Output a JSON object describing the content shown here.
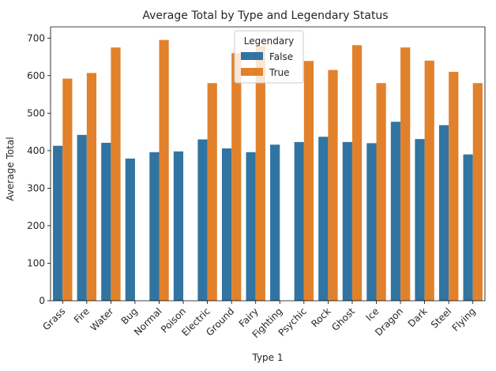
{
  "chart_data": {
    "type": "bar",
    "title": "Average Total by Type and Legendary Status",
    "xlabel": "Type 1",
    "ylabel": "Average Total",
    "ylim": [
      0,
      730
    ],
    "yticks": [
      0,
      100,
      200,
      300,
      400,
      500,
      600,
      700
    ],
    "grid": false,
    "legend": {
      "title": "Legendary",
      "placement": "top-center"
    },
    "categories": [
      "Grass",
      "Fire",
      "Water",
      "Bug",
      "Normal",
      "Poison",
      "Electric",
      "Ground",
      "Fairy",
      "Fighting",
      "Psychic",
      "Rock",
      "Ghost",
      "Ice",
      "Dragon",
      "Dark",
      "Steel",
      "Flying"
    ],
    "series": [
      {
        "name": "False",
        "color": "#3274a1",
        "values": [
          413,
          442,
          421,
          379,
          396,
          398,
          430,
          406,
          396,
          416,
          423,
          437,
          423,
          420,
          477,
          431,
          468,
          390
        ]
      },
      {
        "name": "True",
        "color": "#e1812c",
        "values": [
          592,
          607,
          675,
          null,
          695,
          null,
          580,
          660,
          680,
          null,
          639,
          615,
          681,
          580,
          675,
          640,
          610,
          580
        ]
      }
    ]
  }
}
